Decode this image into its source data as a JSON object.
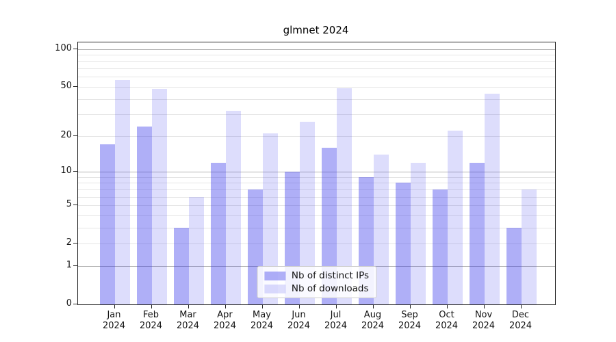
{
  "title": "glmnet 2024",
  "chart_data": {
    "type": "bar",
    "title": "glmnet 2024",
    "categories": [
      "Jan 2024",
      "Feb 2024",
      "Mar 2024",
      "Apr 2024",
      "May 2024",
      "Jun 2024",
      "Jul 2024",
      "Aug 2024",
      "Sep 2024",
      "Oct 2024",
      "Nov 2024",
      "Dec 2024"
    ],
    "x_tick_months": [
      "Jan",
      "Feb",
      "Mar",
      "Apr",
      "May",
      "Jun",
      "Jul",
      "Aug",
      "Sep",
      "Oct",
      "Nov",
      "Dec"
    ],
    "x_tick_year": "2024",
    "series": [
      {
        "name": "Nb of distinct IPs",
        "values": [
          17,
          24,
          3,
          12,
          7,
          10,
          16,
          9,
          8,
          7,
          12,
          3
        ],
        "color": "rgba(45,45,235,0.38)"
      },
      {
        "name": "Nb of downloads",
        "values": [
          57,
          48,
          6,
          32,
          21,
          26,
          49,
          14,
          12,
          22,
          44,
          7
        ],
        "color": "rgba(45,45,235,0.16)"
      }
    ],
    "xlabel": "",
    "ylabel": "",
    "y_scale": "log10(1+y)",
    "y_tick_labels": [
      0,
      1,
      2,
      5,
      10,
      20,
      50,
      100
    ],
    "y_major_gridlines": [
      1,
      10,
      100
    ],
    "y_minor_gridlines": [
      2,
      3,
      4,
      5,
      6,
      7,
      8,
      9,
      20,
      30,
      40,
      50,
      60,
      70,
      80,
      90
    ],
    "ylim": [
      0,
      113
    ],
    "grid": true,
    "legend_position": "lower center"
  },
  "colors": {
    "bar_distinct_ips": "rgba(45,45,235,0.38)",
    "bar_downloads": "rgba(45,45,235,0.16)",
    "grid_major": "#b2b2b2",
    "grid_minor": "#e5e5e5",
    "spine": "#2a2a2a",
    "text": "#111111",
    "legend_border": "#cccccc",
    "legend_background": "rgba(255,255,255,0.85)"
  }
}
